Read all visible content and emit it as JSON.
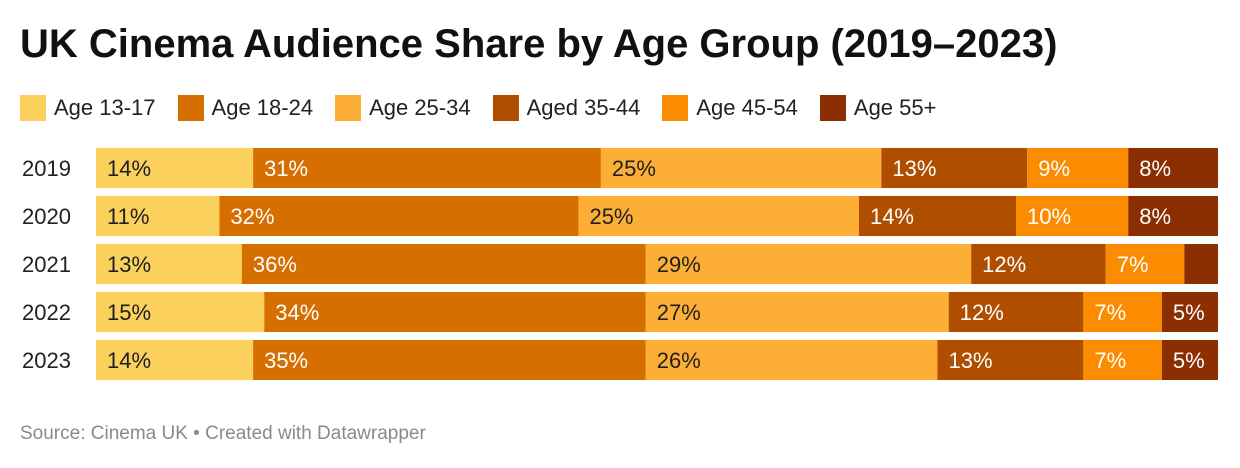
{
  "title": "UK Cinema Audience Share by Age Group (2019–2023)",
  "footer": "Source: Cinema UK • Created with Datawrapper",
  "colors": [
    "#fcd05c",
    "#d66f00",
    "#fdae35",
    "#b04e00",
    "#fb8c00",
    "#8b2e00"
  ],
  "chart_data": {
    "type": "bar",
    "orientation": "horizontal",
    "stacked": true,
    "title": "UK Cinema Audience Share by Age Group (2019–2023)",
    "categories": [
      "2019",
      "2020",
      "2021",
      "2022",
      "2023"
    ],
    "unit": "%",
    "legend_position": "top",
    "series": [
      {
        "name": "Age 13-17",
        "color": "#fcd05c",
        "values": [
          14,
          11,
          13,
          15,
          14
        ],
        "labels": [
          "14%",
          "11%",
          "13%",
          "15%",
          "14%"
        ]
      },
      {
        "name": "Age 18-24",
        "color": "#d66f00",
        "values": [
          31,
          32,
          36,
          34,
          35
        ],
        "labels": [
          "31%",
          "32%",
          "36%",
          "34%",
          "35%"
        ]
      },
      {
        "name": "Age 25-34",
        "color": "#fdae35",
        "values": [
          25,
          25,
          29,
          27,
          26
        ],
        "labels": [
          "25%",
          "25%",
          "29%",
          "27%",
          "26%"
        ]
      },
      {
        "name": "Aged 35-44",
        "color": "#b04e00",
        "values": [
          13,
          14,
          12,
          12,
          13
        ],
        "labels": [
          "13%",
          "14%",
          "12%",
          "12%",
          "13%"
        ]
      },
      {
        "name": "Age 45-54",
        "color": "#fb8c00",
        "values": [
          9,
          10,
          7,
          7,
          7
        ],
        "labels": [
          "9%",
          "10%",
          "7%",
          "7%",
          "7%"
        ]
      },
      {
        "name": "Age 55+",
        "color": "#8b2e00",
        "values": [
          8,
          8,
          3,
          5,
          5
        ],
        "labels": [
          "8%",
          "8%",
          "",
          "5%",
          "5%"
        ]
      }
    ]
  }
}
